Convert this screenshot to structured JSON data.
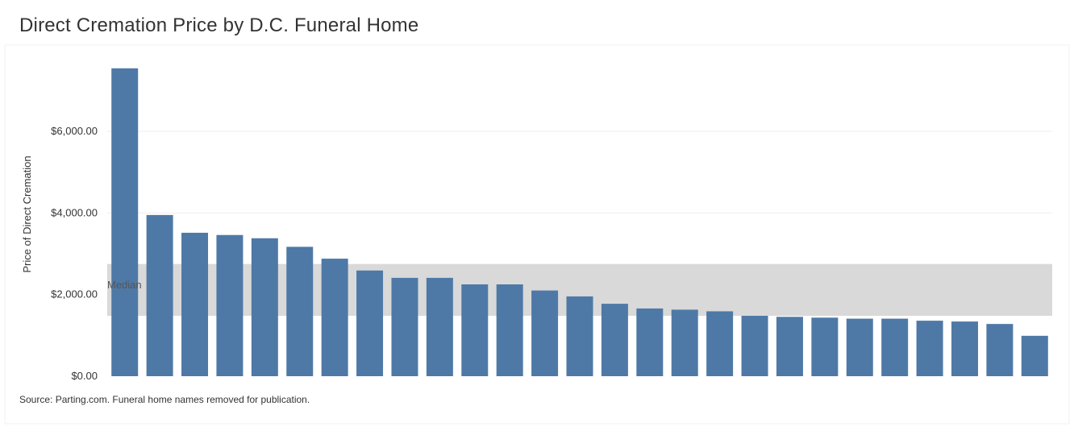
{
  "chart_data": {
    "type": "bar",
    "title": "Direct Cremation Price by D.C. Funeral Home",
    "xlabel": "",
    "ylabel": "Price of Direct Cremation",
    "ylim": [
      0,
      7600
    ],
    "y_ticks": [
      {
        "value": 0,
        "label": "$0.00"
      },
      {
        "value": 2000,
        "label": "$2,000.00"
      },
      {
        "value": 4000,
        "label": "$4,000.00"
      },
      {
        "value": 6000,
        "label": "$6,000.00"
      }
    ],
    "values": [
      7545,
      3950,
      3515,
      3460,
      3380,
      3170,
      2880,
      2590,
      2410,
      2410,
      2250,
      2250,
      2100,
      1955,
      1775,
      1660,
      1630,
      1590,
      1480,
      1455,
      1435,
      1410,
      1410,
      1360,
      1340,
      1280,
      990
    ],
    "bar_color": "#4e79a7",
    "median_band": {
      "label": "Median",
      "low": 1480,
      "high": 2750,
      "color": "#d9d9d9"
    },
    "grid": true,
    "source": "Source: Parting.com. Funeral home names removed for publication."
  }
}
